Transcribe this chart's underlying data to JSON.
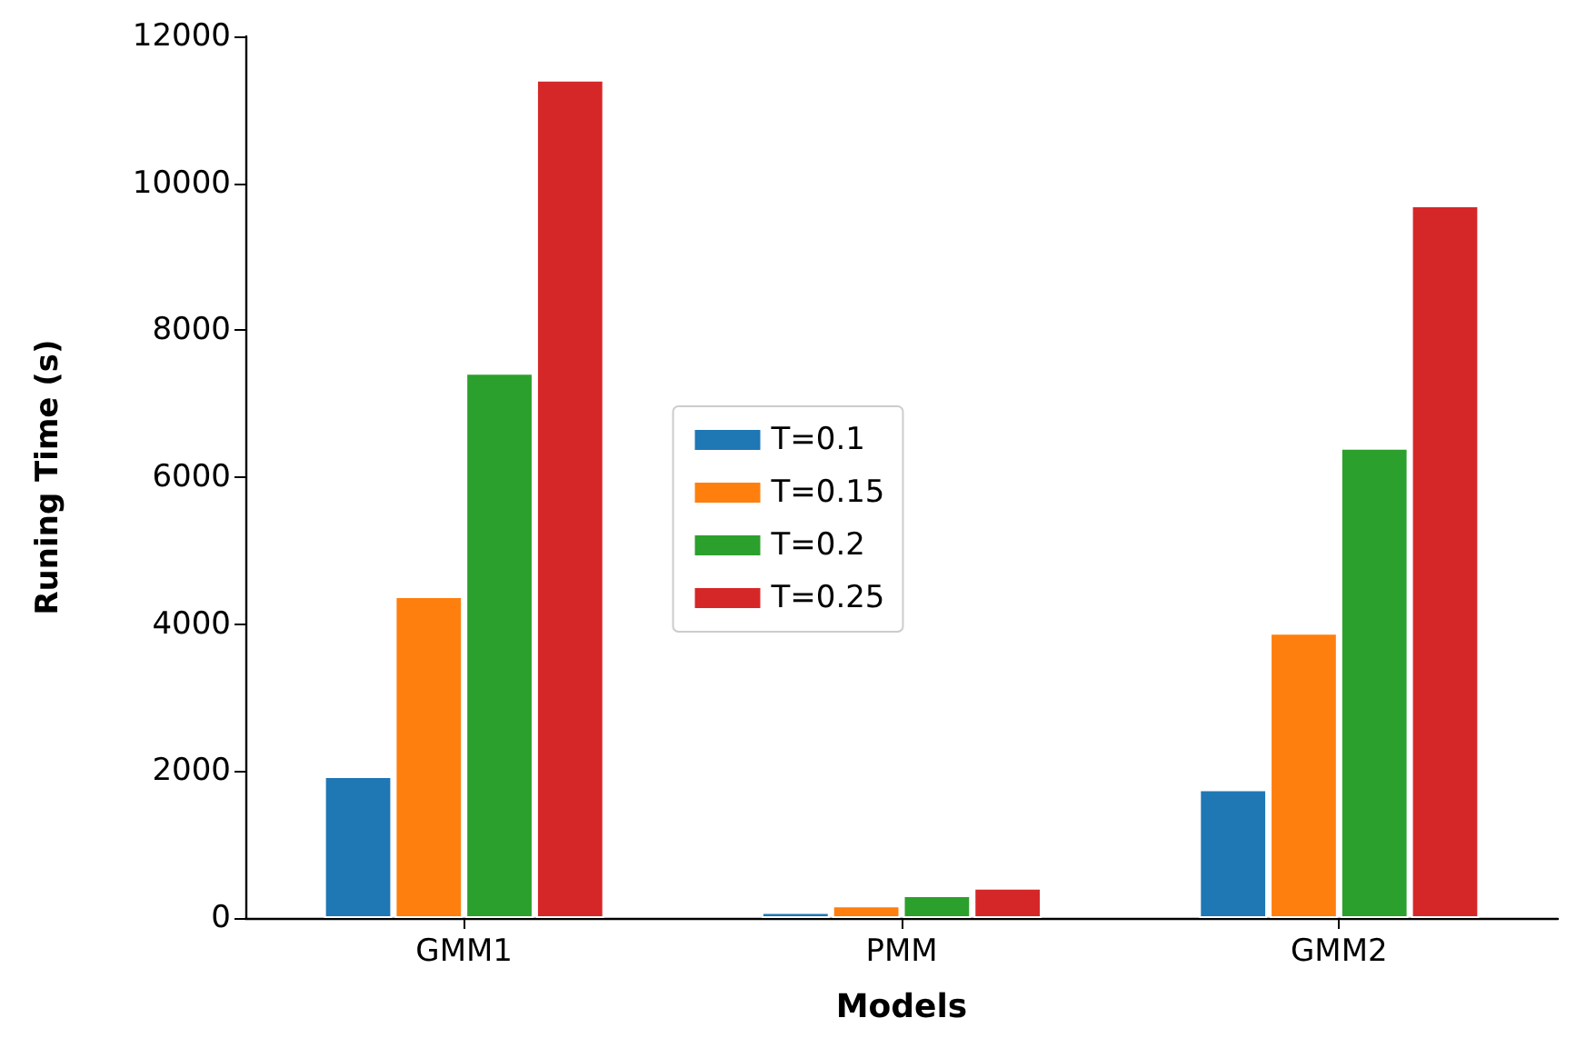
{
  "chart_data": {
    "type": "bar",
    "xlabel": "Models",
    "ylabel": "Runing Time (s)",
    "categories": [
      "GMM1",
      "PMM",
      "GMM2"
    ],
    "series": [
      {
        "name": "T=0.1",
        "color": "#1f77b4",
        "values": [
          1930,
          80,
          1750
        ]
      },
      {
        "name": "T=0.15",
        "color": "#ff7f0e",
        "values": [
          4380,
          170,
          3880
        ]
      },
      {
        "name": "T=0.2",
        "color": "#2ca02c",
        "values": [
          7420,
          310,
          6400
        ]
      },
      {
        "name": "T=0.25",
        "color": "#d62728",
        "values": [
          11410,
          410,
          9700
        ]
      }
    ],
    "ylim": [
      0,
      12000
    ],
    "yticks": [
      0,
      2000,
      4000,
      6000,
      8000,
      10000,
      12000
    ],
    "grid": false,
    "legend": "center"
  }
}
